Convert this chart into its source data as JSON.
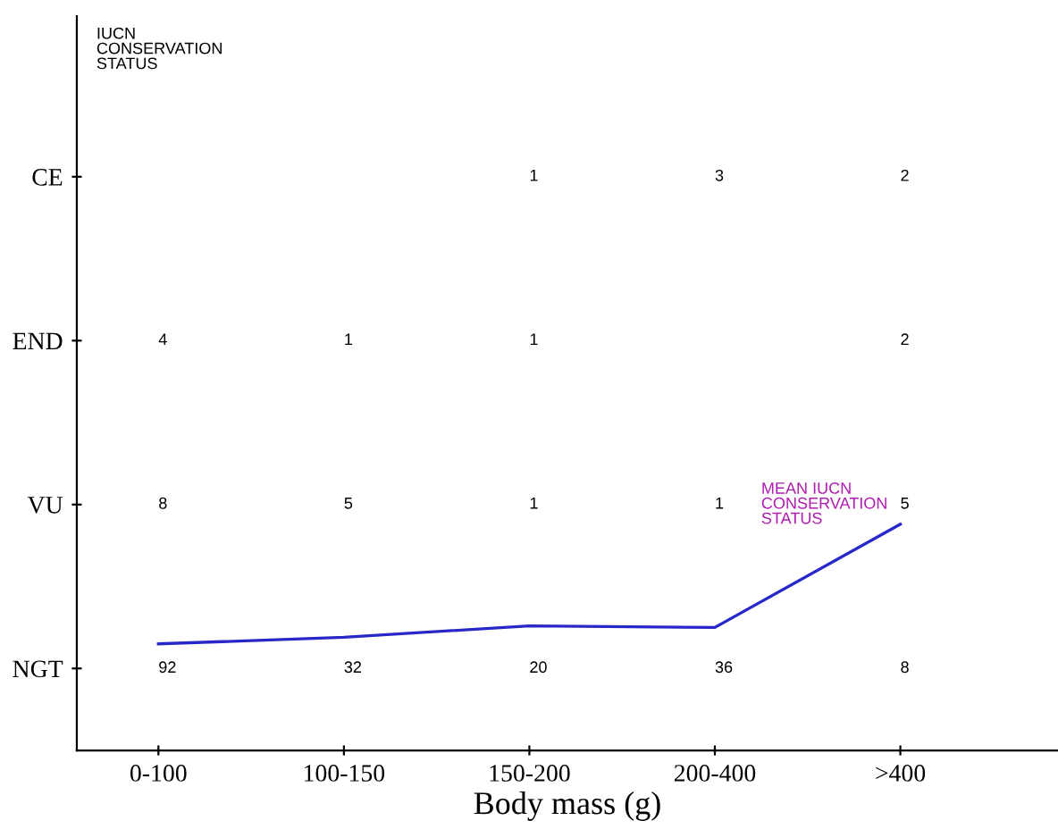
{
  "chart_data": {
    "type": "heatmap",
    "xlabel": "Body mass (g)",
    "ylabel": "IUCN\nCONSERVATION\nSTATUS",
    "categories": [
      "0-100",
      "100-150",
      "150-200",
      "200-400",
      ">400"
    ],
    "y_categories": [
      "CE",
      "END",
      "VU",
      "NGT"
    ],
    "cells": [
      [
        null,
        null,
        1,
        3,
        2
      ],
      [
        4,
        1,
        1,
        null,
        2
      ],
      [
        8,
        5,
        1,
        1,
        5
      ],
      [
        92,
        32,
        20,
        36,
        8
      ]
    ],
    "series": [
      {
        "type": "line",
        "name": "MEAN IUCN\nCONSERVATION\nSTATUS",
        "color": "#2828c8",
        "values": [
          2.85,
          2.81,
          2.74,
          2.75,
          2.12
        ],
        "value_labels": [
          null,
          null,
          null,
          null,
          null
        ]
      }
    ],
    "data_labels": true,
    "grid": false,
    "legend": false,
    "marker": "none",
    "line_style": "solid"
  }
}
